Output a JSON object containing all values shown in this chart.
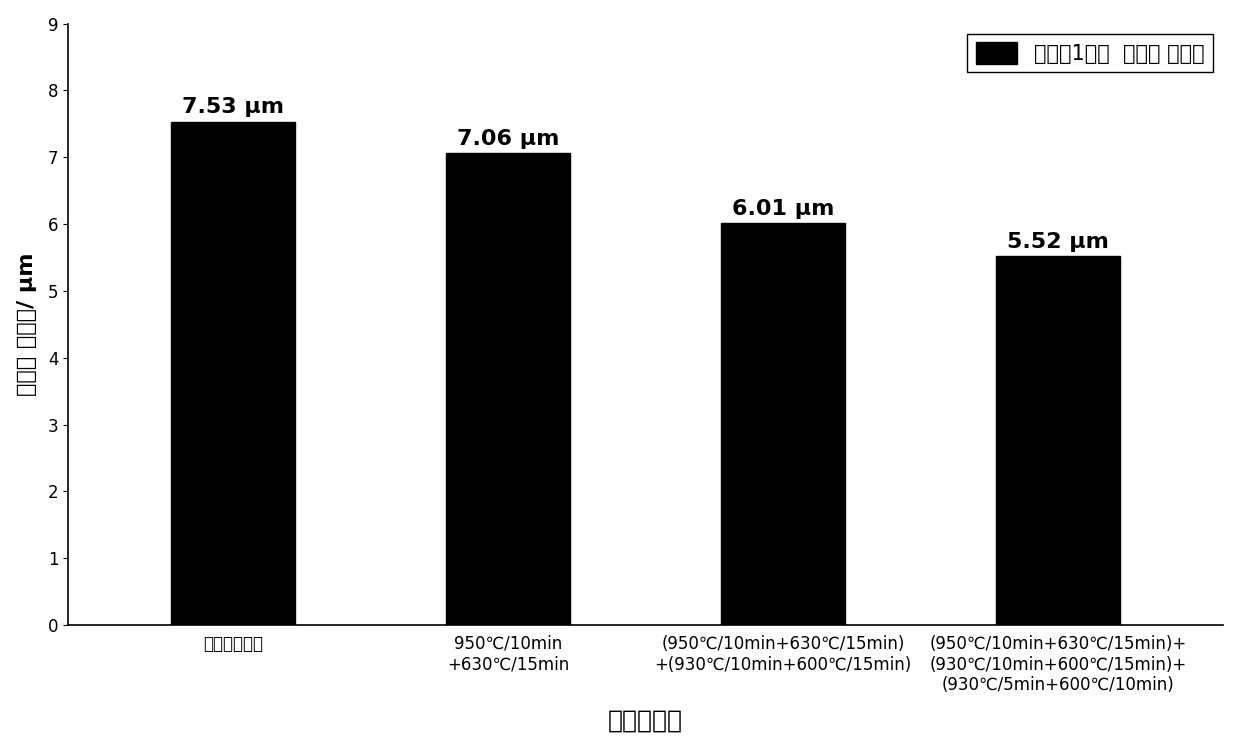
{
  "categories": [
    "未处理的样品",
    "950℃/10min\n+630℃/15min",
    "(950℃/10min+630℃/15min)\n+(930℃/10min+600℃/15min)",
    "(950℃/10min+630℃/15min)+\n(930℃/10min+600℃/15min)+\n(930℃/5min+600℃/10min)"
  ],
  "values": [
    7.53,
    7.06,
    6.01,
    5.52
  ],
  "bar_color": "#000000",
  "bar_width": 0.45,
  "ylim": [
    0,
    9
  ],
  "yticks": [
    0,
    1,
    2,
    3,
    4,
    5,
    6,
    7,
    8,
    9
  ],
  "ylabel": "平均晶 粒尺寸/ μm",
  "xlabel": "热处理样品",
  "legend_label": "实施例1样品  平均晶 粒尺寸",
  "value_labels": [
    "7.53 μm",
    "7.06 μm",
    "6.01 μm",
    "5.52 μm"
  ],
  "background_color": "#ffffff",
  "title_fontsize": 18,
  "label_fontsize": 16,
  "tick_fontsize": 12,
  "value_fontsize": 16,
  "legend_fontsize": 15
}
